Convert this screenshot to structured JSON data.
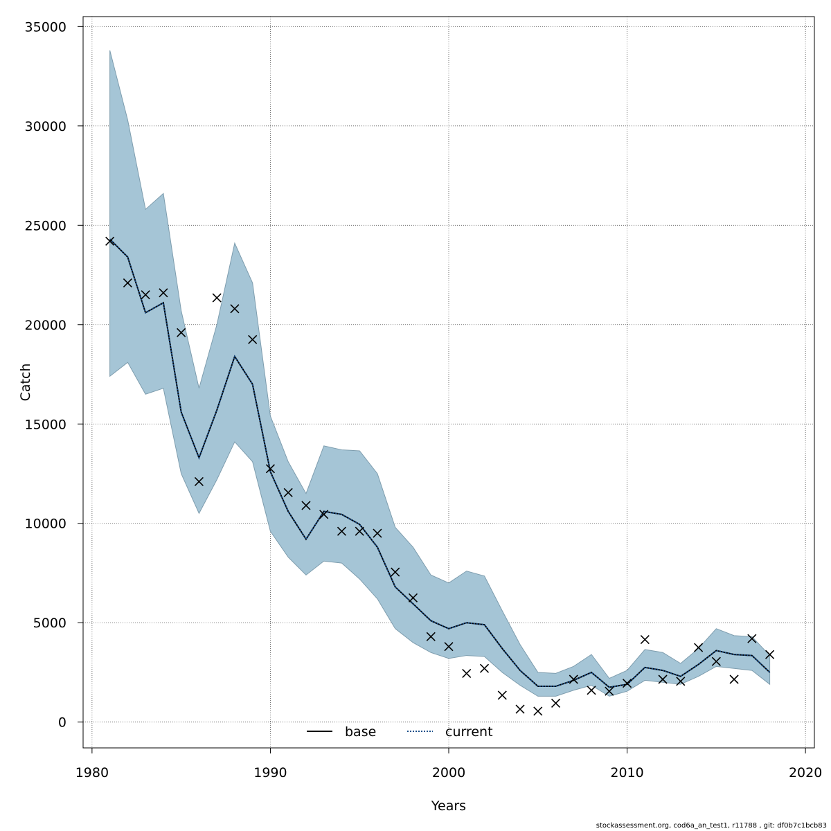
{
  "chart_data": {
    "type": "line",
    "title": "",
    "xlabel": "Years",
    "ylabel": "Catch",
    "xlim": [
      1979.5,
      2020.5
    ],
    "ylim": [
      -1300,
      35500
    ],
    "x_ticks": [
      1980,
      1990,
      2000,
      2010,
      2020
    ],
    "y_ticks": [
      0,
      5000,
      10000,
      15000,
      20000,
      25000,
      30000,
      35000
    ],
    "grid": true,
    "legend_position": "bottom-center",
    "x": [
      1981,
      1982,
      1983,
      1984,
      1985,
      1986,
      1987,
      1988,
      1989,
      1990,
      1991,
      1992,
      1993,
      1994,
      1995,
      1996,
      1997,
      1998,
      1999,
      2000,
      2001,
      2002,
      2003,
      2004,
      2005,
      2006,
      2007,
      2008,
      2009,
      2010,
      2011,
      2012,
      2013,
      2014,
      2015,
      2016,
      2017,
      2018
    ],
    "series": [
      {
        "name": "base",
        "style": "solid",
        "color": "#000000",
        "values": [
          24300,
          23400,
          20600,
          21100,
          15600,
          13300,
          15700,
          18400,
          17000,
          12600,
          10600,
          9200,
          10600,
          10450,
          9950,
          8800,
          6800,
          5950,
          5100,
          4700,
          5000,
          4900,
          3700,
          2600,
          1800,
          1800,
          2100,
          2500,
          1750,
          1900,
          2750,
          2600,
          2300,
          2900,
          3600,
          3400,
          3350,
          2500
        ]
      },
      {
        "name": "current",
        "style": "dotted",
        "color": "#1a4f8a",
        "values": [
          24300,
          23400,
          20600,
          21100,
          15600,
          13300,
          15700,
          18400,
          17000,
          12600,
          10600,
          9200,
          10600,
          10450,
          9950,
          8800,
          6800,
          5950,
          5100,
          4700,
          5000,
          4900,
          3700,
          2600,
          1800,
          1800,
          2100,
          2500,
          1750,
          1900,
          2750,
          2600,
          2300,
          2900,
          3600,
          3400,
          3350,
          2500
        ]
      }
    ],
    "confidence_band": {
      "color": "#a5c5d6",
      "upper": [
        33800,
        30300,
        25800,
        26600,
        20700,
        16800,
        20000,
        24100,
        22100,
        15400,
        13100,
        11500,
        13900,
        13700,
        13650,
        12500,
        9800,
        8800,
        7400,
        7000,
        7600,
        7350,
        5600,
        3900,
        2500,
        2450,
        2800,
        3400,
        2200,
        2600,
        3650,
        3500,
        2950,
        3700,
        4700,
        4350,
        4300,
        3350
      ],
      "lower": [
        17400,
        18100,
        16500,
        16800,
        12500,
        10500,
        12200,
        14100,
        13100,
        9600,
        8300,
        7400,
        8100,
        8000,
        7200,
        6200,
        4700,
        4000,
        3500,
        3200,
        3350,
        3300,
        2500,
        1850,
        1300,
        1300,
        1600,
        1850,
        1300,
        1550,
        2100,
        2000,
        1900,
        2300,
        2800,
        2700,
        2600,
        1900
      ]
    },
    "observations": {
      "marker": "x",
      "color": "#000000",
      "x": [
        1981,
        1982,
        1983,
        1984,
        1985,
        1986,
        1987,
        1988,
        1989,
        1990,
        1991,
        1992,
        1993,
        1994,
        1995,
        1996,
        1997,
        1998,
        1999,
        2000,
        2001,
        2002,
        2003,
        2004,
        2005,
        2006,
        2007,
        2008,
        2009,
        2010,
        2011,
        2012,
        2013,
        2014,
        2015,
        2016,
        2017,
        2018
      ],
      "y": [
        24200,
        22100,
        21500,
        21600,
        19600,
        12100,
        21350,
        20800,
        19250,
        12750,
        11550,
        10900,
        10450,
        9600,
        9600,
        9500,
        7550,
        6250,
        4300,
        3800,
        2450,
        2700,
        1350,
        650,
        550,
        950,
        2150,
        1600,
        1550,
        1950,
        4150,
        2150,
        2050,
        3750,
        3050,
        2150,
        4200,
        3400
      ]
    }
  },
  "footer_text": "stockassessment.org, cod6a_an_test1, r11788 , git: df0b7c1bcb83"
}
